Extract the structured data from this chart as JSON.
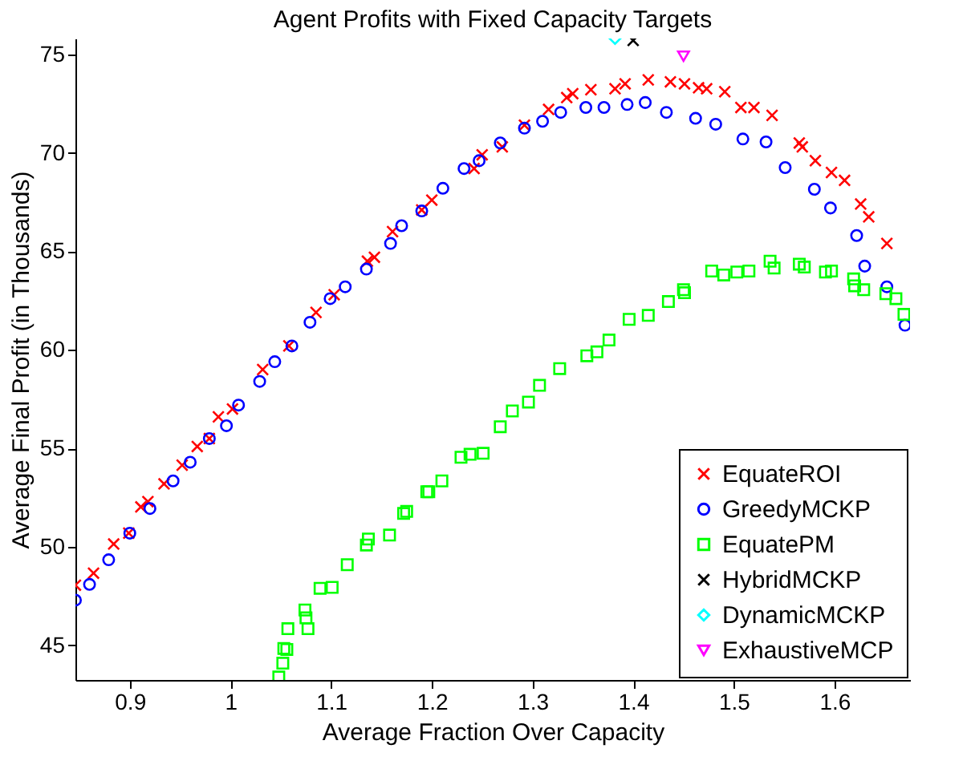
{
  "chart_data": {
    "type": "scatter",
    "title": "Agent Profits with Fixed Capacity Targets",
    "xlabel": "Average Fraction Over Capacity",
    "ylabel": "Average Final Profit (in Thousands)",
    "xlim": [
      0.846,
      1.675
    ],
    "ylim": [
      43.25,
      75.8
    ],
    "xticks": [
      0.9,
      1,
      1.1,
      1.2,
      1.3,
      1.4,
      1.5,
      1.6
    ],
    "yticks": [
      45,
      50,
      55,
      60,
      65,
      70,
      75
    ],
    "grid": false,
    "legend": "bottom right",
    "series": [
      {
        "name": "EquateROI",
        "color": "#ff0000",
        "marker": "cross",
        "x": [
          0.846,
          0.864,
          0.884,
          0.899,
          0.911,
          0.918,
          0.934,
          0.952,
          0.967,
          0.979,
          0.988,
          1.002,
          1.032,
          1.058,
          1.085,
          1.103,
          1.136,
          1.143,
          1.161,
          1.19,
          1.2,
          1.242,
          1.25,
          1.27,
          1.292,
          1.316,
          1.334,
          1.34,
          1.358,
          1.382,
          1.392,
          1.415,
          1.437,
          1.451,
          1.465,
          1.473,
          1.491,
          1.507,
          1.52,
          1.538,
          1.565,
          1.568,
          1.581,
          1.597,
          1.61,
          1.626,
          1.634,
          1.652
        ],
        "values": [
          48.06,
          48.67,
          50.15,
          50.7,
          52.03,
          52.3,
          53.2,
          54.15,
          55.1,
          55.5,
          56.6,
          57.0,
          59.0,
          60.2,
          61.9,
          62.8,
          64.5,
          64.7,
          66.0,
          67.1,
          67.6,
          69.2,
          69.9,
          70.3,
          71.4,
          72.2,
          72.8,
          73.0,
          73.2,
          73.25,
          73.5,
          73.7,
          73.6,
          73.5,
          73.3,
          73.25,
          73.1,
          72.3,
          72.3,
          71.9,
          70.5,
          70.3,
          69.6,
          69.0,
          68.6,
          67.4,
          66.75,
          65.4
        ]
      },
      {
        "name": "GreedyMCKP",
        "color": "#0000ff",
        "marker": "circle",
        "x": [
          0.846,
          0.86,
          0.879,
          0.9,
          0.92,
          0.943,
          0.96,
          0.979,
          0.996,
          1.008,
          1.029,
          1.044,
          1.061,
          1.079,
          1.099,
          1.114,
          1.135,
          1.159,
          1.17,
          1.19,
          1.211,
          1.232,
          1.247,
          1.268,
          1.292,
          1.31,
          1.328,
          1.353,
          1.371,
          1.394,
          1.412,
          1.433,
          1.462,
          1.482,
          1.509,
          1.532,
          1.551,
          1.58,
          1.596,
          1.622,
          1.63,
          1.652,
          1.67
        ],
        "values": [
          47.3,
          48.1,
          49.35,
          50.7,
          51.95,
          53.35,
          54.3,
          55.5,
          56.15,
          57.2,
          58.4,
          59.4,
          60.2,
          61.4,
          62.6,
          63.2,
          64.1,
          65.4,
          66.3,
          67.05,
          68.2,
          69.2,
          69.6,
          70.5,
          71.25,
          71.6,
          72.05,
          72.3,
          72.3,
          72.45,
          72.55,
          72.05,
          71.75,
          71.45,
          70.7,
          70.55,
          69.25,
          68.15,
          67.2,
          65.8,
          64.25,
          63.2,
          61.25
        ]
      },
      {
        "name": "EquatePM",
        "color": "#00ff00",
        "marker": "square",
        "x": [
          1.048,
          1.052,
          1.053,
          1.056,
          1.057,
          1.074,
          1.075,
          1.077,
          1.089,
          1.101,
          1.116,
          1.135,
          1.137,
          1.158,
          1.172,
          1.175,
          1.195,
          1.197,
          1.21,
          1.229,
          1.238,
          1.251,
          1.268,
          1.28,
          1.296,
          1.307,
          1.327,
          1.354,
          1.364,
          1.376,
          1.396,
          1.415,
          1.435,
          1.45,
          1.451,
          1.478,
          1.49,
          1.503,
          1.515,
          1.536,
          1.54,
          1.565,
          1.57,
          1.591,
          1.597,
          1.619,
          1.62,
          1.629,
          1.651,
          1.661,
          1.669
        ],
        "values": [
          43.4,
          44.1,
          44.85,
          44.8,
          45.85,
          46.8,
          46.4,
          45.85,
          47.9,
          47.95,
          49.1,
          50.1,
          50.4,
          50.6,
          51.7,
          51.8,
          52.8,
          52.8,
          53.35,
          54.55,
          54.7,
          54.75,
          56.1,
          56.9,
          57.35,
          58.2,
          59.05,
          59.7,
          59.9,
          60.5,
          61.55,
          61.75,
          62.45,
          63.05,
          62.9,
          64.0,
          63.8,
          63.95,
          64.0,
          64.5,
          64.15,
          64.35,
          64.2,
          63.95,
          64.0,
          63.6,
          63.25,
          63.05,
          62.85,
          62.6,
          61.8
        ]
      },
      {
        "name": "HybridMCKP",
        "color": "#000000",
        "marker": "cross",
        "x": [
          1.4
        ],
        "values": [
          75.7
        ]
      },
      {
        "name": "DynamicMCKP",
        "color": "#00ffff",
        "marker": "diamond",
        "x": [
          1.382
        ],
        "values": [
          75.8
        ]
      },
      {
        "name": "ExhaustiveMCP",
        "color": "#ff00ff",
        "marker": "triangle",
        "x": [
          1.45
        ],
        "values": [
          74.9
        ]
      }
    ]
  }
}
